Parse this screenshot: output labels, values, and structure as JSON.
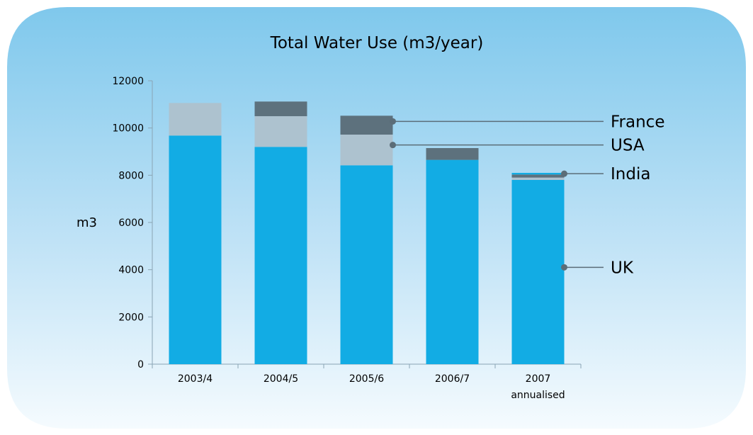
{
  "chart_data": {
    "type": "bar",
    "stacked": true,
    "title": "Total Water Use (m3/year)",
    "ylabel": "m3",
    "xlabel": "",
    "ylim": [
      0,
      12000
    ],
    "yticks": [
      "0",
      "2000",
      "4000",
      "6000",
      "8000",
      "10000",
      "12000"
    ],
    "categories": [
      {
        "line1": "2003/4",
        "line2": ""
      },
      {
        "line1": "2004/5",
        "line2": ""
      },
      {
        "line1": "2005/6",
        "line2": ""
      },
      {
        "line1": "2006/7",
        "line2": ""
      },
      {
        "line1": "2007",
        "line2": "annualised"
      }
    ],
    "series": [
      {
        "name": "UK",
        "color": "#12ace4",
        "values": [
          9680,
          9200,
          8420,
          8650,
          7800
        ]
      },
      {
        "name": "USA",
        "color": "#adc2cf",
        "values": [
          1380,
          1300,
          1300,
          0,
          100
        ]
      },
      {
        "name": "France",
        "color": "#5d717d",
        "values": [
          0,
          620,
          800,
          500,
          130
        ]
      },
      {
        "name": "India",
        "color": "#12ace4",
        "values": [
          0,
          0,
          0,
          0,
          70
        ]
      }
    ],
    "legend_placement": "right, callout lines"
  }
}
